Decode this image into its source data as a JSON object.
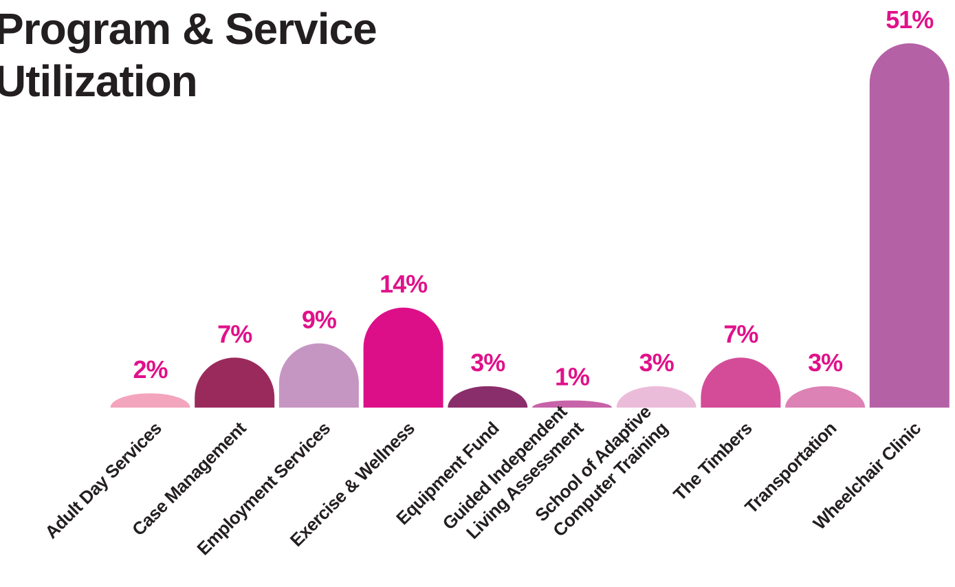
{
  "chart_data": {
    "type": "bar",
    "title_lines": [
      "Program & Service",
      "Utilization"
    ],
    "categories": [
      "Adult Day Services",
      "Case Management",
      "Employment Services",
      "Exercise & Wellness",
      "Equipment Fund",
      "Guided Independent Living Assessment",
      "School of Adaptive Computer Training",
      "The Timbers",
      "Transportation",
      "Wheelchair Clinic"
    ],
    "category_label_lines": [
      [
        "Adult Day Services"
      ],
      [
        "Case Management"
      ],
      [
        "Employment Services"
      ],
      [
        "Exercise & Wellness"
      ],
      [
        "Equipment Fund"
      ],
      [
        "Guided Independent",
        "Living Assessment"
      ],
      [
        "School of Adaptive",
        "Computer Training"
      ],
      [
        "The Timbers"
      ],
      [
        "Transportation"
      ],
      [
        "Wheelchair Clinic"
      ]
    ],
    "values": [
      2,
      7,
      9,
      14,
      3,
      1,
      3,
      7,
      3,
      51
    ],
    "value_labels": [
      "2%",
      "7%",
      "9%",
      "14%",
      "3%",
      "1%",
      "3%",
      "7%",
      "3%",
      "51%"
    ],
    "unit": "%",
    "ylim": [
      0,
      51
    ],
    "grid": false,
    "legend": "none",
    "bar_shape": "rounded-top",
    "label_color": "#e0118a",
    "text_color": "#231f20",
    "bar_colors": [
      "#f3a5bd",
      "#9b2a5c",
      "#c696c3",
      "#dd0f88",
      "#8a2d6b",
      "#c763a8",
      "#ebbcd9",
      "#d44c98",
      "#dc82b5",
      "#b561a6"
    ]
  }
}
